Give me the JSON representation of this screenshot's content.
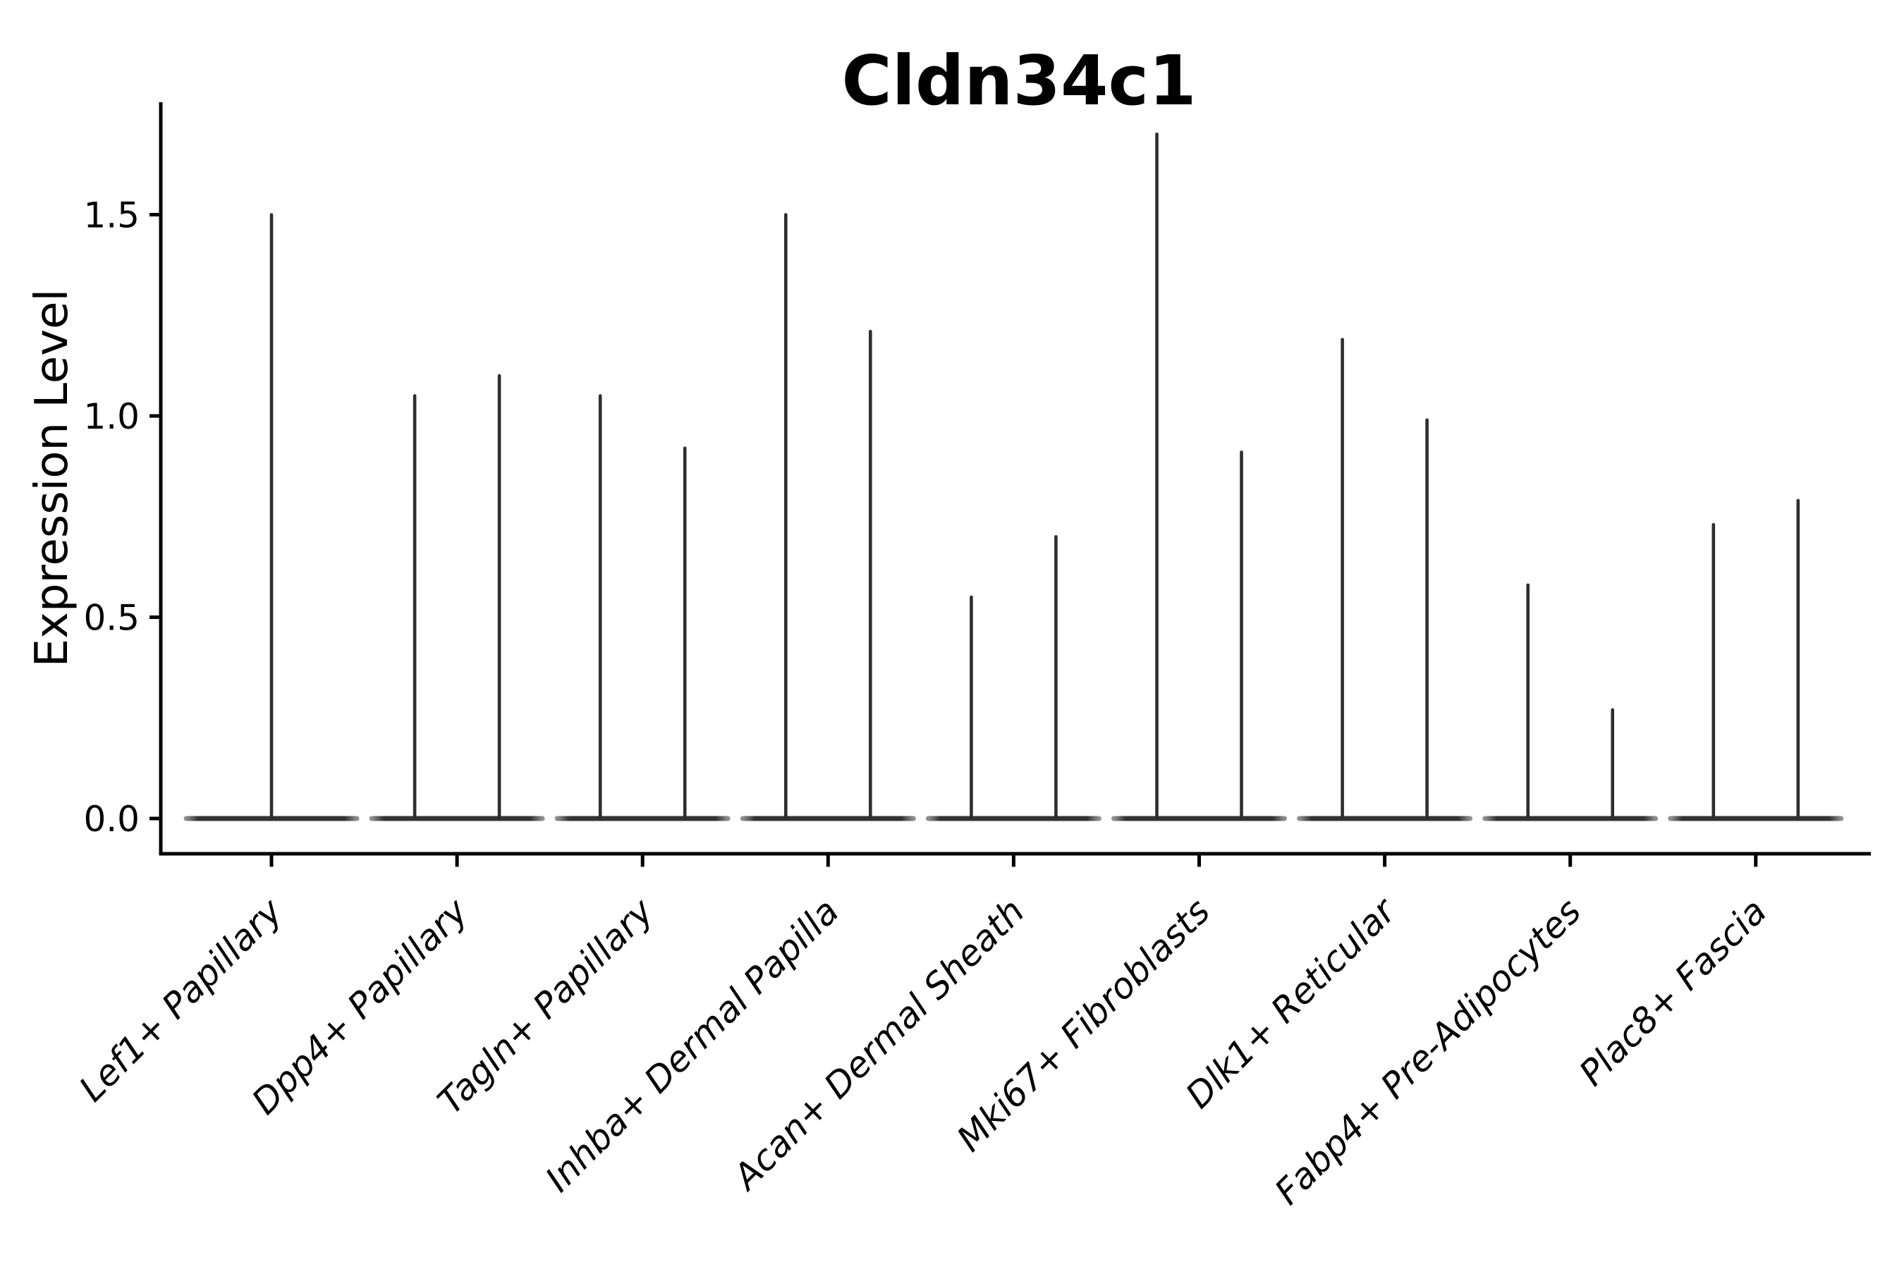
{
  "chart_data": {
    "type": "violin",
    "title": "Cldn34c1",
    "ylabel": "Expression Level",
    "xlabel": "",
    "ytick_labels": [
      "0.0",
      "0.5",
      "1.0",
      "1.5"
    ],
    "ytick_values": [
      0.0,
      0.5,
      1.0,
      1.5
    ],
    "ylim": [
      -0.09,
      1.78
    ],
    "grid": false,
    "legend": "none",
    "x_tick_label_rotation_deg": 45,
    "x_tick_label_style": "italic",
    "categories": [
      "Lef1+ Papillary",
      "Dpp4+ Papillary",
      "Tagln+ Papillary",
      "Inhba+ Dermal Papilla",
      "Acan+ Dermal Sheath",
      "Mki67+ Fibroblasts",
      "Dlk1+ Reticular",
      "Fabp4+ Pre-Adipocytes",
      "Plac8+ Fascia"
    ],
    "violins": [
      {
        "category": "Lef1+ Papillary",
        "base_value": 0.0,
        "spikes": [
          {
            "x_offset": 0,
            "max": 1.5
          }
        ]
      },
      {
        "category": "Dpp4+ Papillary",
        "base_value": 0.0,
        "spikes": [
          {
            "x_offset": -60,
            "max": 1.05
          },
          {
            "x_offset": 60,
            "max": 1.1
          }
        ]
      },
      {
        "category": "Tagln+ Papillary",
        "base_value": 0.0,
        "spikes": [
          {
            "x_offset": -60,
            "max": 1.05
          },
          {
            "x_offset": 60,
            "max": 0.92
          }
        ]
      },
      {
        "category": "Inhba+ Dermal Papilla",
        "base_value": 0.0,
        "spikes": [
          {
            "x_offset": -60,
            "max": 1.5
          },
          {
            "x_offset": 60,
            "max": 1.21
          }
        ]
      },
      {
        "category": "Acan+ Dermal Sheath",
        "base_value": 0.0,
        "spikes": [
          {
            "x_offset": -60,
            "max": 0.55
          },
          {
            "x_offset": 60,
            "max": 0.7
          }
        ]
      },
      {
        "category": "Mki67+ Fibroblasts",
        "base_value": 0.0,
        "spikes": [
          {
            "x_offset": -60,
            "max": 1.7
          },
          {
            "x_offset": 60,
            "max": 0.91
          }
        ]
      },
      {
        "category": "Dlk1+ Reticular",
        "base_value": 0.0,
        "spikes": [
          {
            "x_offset": -60,
            "max": 1.19
          },
          {
            "x_offset": 60,
            "max": 0.99
          }
        ]
      },
      {
        "category": "Fabp4+ Pre-Adipocytes",
        "base_value": 0.0,
        "spikes": [
          {
            "x_offset": -60,
            "max": 0.58
          },
          {
            "x_offset": 60,
            "max": 0.27
          }
        ]
      },
      {
        "category": "Plac8+ Fascia",
        "base_value": 0.0,
        "spikes": [
          {
            "x_offset": -60,
            "max": 0.73
          },
          {
            "x_offset": 60,
            "max": 0.79
          }
        ]
      }
    ],
    "colors": {
      "axis": "#000000",
      "text": "#000000",
      "spike": "#2e2e2e",
      "baseline": "#333333",
      "baseline_tip": "#909090",
      "background": "#ffffff"
    }
  }
}
